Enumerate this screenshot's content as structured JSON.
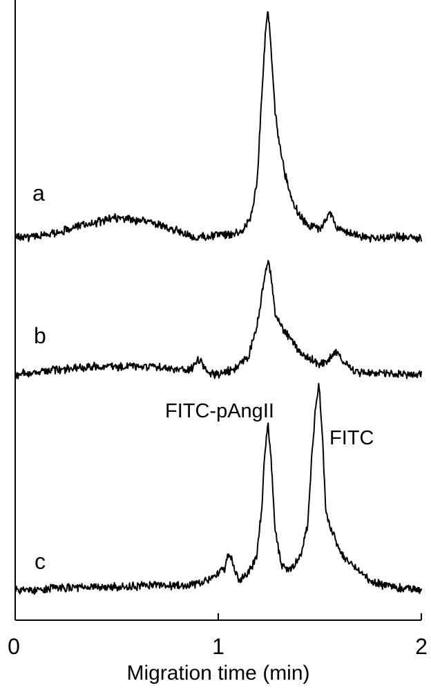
{
  "chart_data": {
    "type": "line",
    "xlabel": "Migration time (min)",
    "ylabel": "",
    "xlim": [
      0,
      2
    ],
    "x_ticks": [
      0,
      1,
      2
    ],
    "x_tick_labels": [
      "0",
      "1",
      "2"
    ],
    "grid": false,
    "legend": "none",
    "series": [
      {
        "name": "a",
        "x": [
          0.0,
          0.1,
          0.2,
          0.3,
          0.4,
          0.5,
          0.55,
          0.6,
          0.7,
          0.8,
          0.88,
          0.92,
          1.0,
          1.07,
          1.12,
          1.16,
          1.19,
          1.21,
          1.23,
          1.245,
          1.26,
          1.28,
          1.3,
          1.33,
          1.36,
          1.4,
          1.45,
          1.5,
          1.53,
          1.55,
          1.58,
          1.62,
          1.7,
          1.8,
          1.9,
          2.0
        ],
        "values": [
          0.0,
          0.0,
          0.02,
          0.05,
          0.07,
          0.09,
          0.09,
          0.08,
          0.06,
          0.03,
          -0.01,
          0.0,
          0.01,
          0.01,
          0.03,
          0.09,
          0.25,
          0.6,
          0.95,
          1.1,
          0.9,
          0.6,
          0.45,
          0.3,
          0.18,
          0.1,
          0.05,
          0.04,
          0.07,
          0.12,
          0.05,
          0.02,
          0.0,
          -0.01,
          0.0,
          -0.01
        ]
      },
      {
        "name": "b",
        "x": [
          0.0,
          0.1,
          0.2,
          0.3,
          0.4,
          0.5,
          0.6,
          0.7,
          0.8,
          0.86,
          0.89,
          0.91,
          0.93,
          0.96,
          1.0,
          1.05,
          1.1,
          1.15,
          1.19,
          1.22,
          1.245,
          1.26,
          1.28,
          1.32,
          1.36,
          1.4,
          1.45,
          1.5,
          1.55,
          1.58,
          1.61,
          1.65,
          1.7,
          1.8,
          1.9,
          2.0
        ],
        "values": [
          0.0,
          0.01,
          0.03,
          0.04,
          0.05,
          0.05,
          0.05,
          0.05,
          0.03,
          0.03,
          0.07,
          0.1,
          0.04,
          0.0,
          0.0,
          0.02,
          0.05,
          0.12,
          0.3,
          0.55,
          0.72,
          0.62,
          0.38,
          0.28,
          0.22,
          0.14,
          0.1,
          0.06,
          0.1,
          0.15,
          0.09,
          0.04,
          0.01,
          0.01,
          0.0,
          0.0
        ]
      },
      {
        "name": "c",
        "x": [
          0.0,
          0.1,
          0.2,
          0.3,
          0.4,
          0.5,
          0.6,
          0.7,
          0.8,
          0.9,
          0.95,
          1.0,
          1.03,
          1.05,
          1.07,
          1.1,
          1.15,
          1.19,
          1.215,
          1.23,
          1.245,
          1.26,
          1.28,
          1.31,
          1.35,
          1.38,
          1.41,
          1.44,
          1.46,
          1.48,
          1.495,
          1.51,
          1.53,
          1.56,
          1.58,
          1.61,
          1.66,
          1.7,
          1.75,
          1.8,
          1.9,
          2.0
        ],
        "values": [
          0.0,
          0.0,
          0.01,
          0.01,
          0.02,
          0.02,
          0.02,
          0.03,
          0.02,
          0.04,
          0.06,
          0.09,
          0.12,
          0.22,
          0.16,
          0.06,
          0.1,
          0.2,
          0.5,
          0.82,
          0.98,
          0.78,
          0.35,
          0.15,
          0.11,
          0.15,
          0.22,
          0.38,
          0.78,
          1.08,
          1.22,
          0.98,
          0.45,
          0.35,
          0.28,
          0.2,
          0.15,
          0.1,
          0.05,
          0.03,
          0.01,
          0.0
        ]
      }
    ],
    "annotations": [
      {
        "text": "FITC-pAngII",
        "target_series": "c",
        "x": 1.245
      },
      {
        "text": "FITC",
        "target_series": "c",
        "x": 1.495
      }
    ],
    "colors": {
      "line": "#000000",
      "axis": "#000000",
      "background": "#ffffff"
    }
  }
}
